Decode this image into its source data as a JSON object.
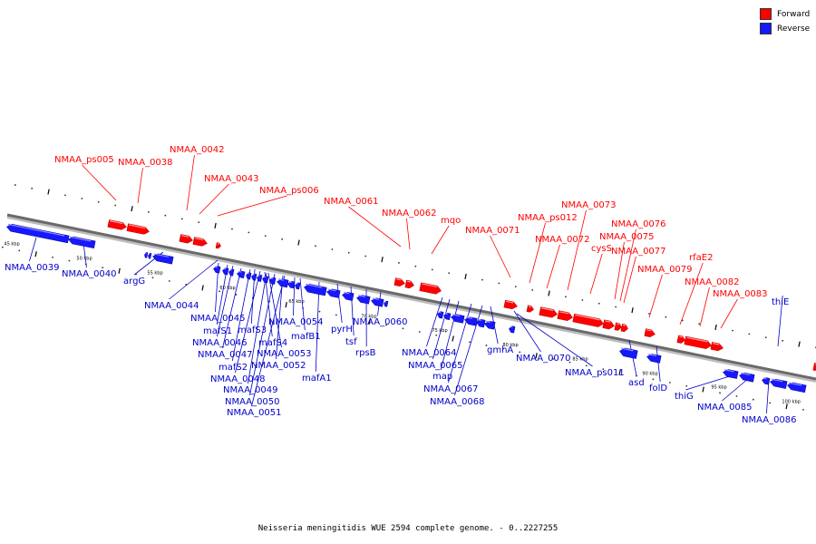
{
  "legend": {
    "forward_label": "Forward",
    "reverse_label": "Reverse",
    "forward_color": "#ff0000",
    "reverse_color": "#1818ff"
  },
  "caption": "Neisseria meningitidis WUE 2594 complete genome. - 0..2227255",
  "scale_labels": [
    "45 kbp",
    "50 kbp",
    "55 kbp",
    "60 kbp",
    "65 kbp",
    "70 kbp",
    "75 kbp",
    "80 kbp",
    "85 kbp",
    "90 kbp",
    "95 kbp",
    "100 kbp"
  ],
  "forward_genes": [
    "NMAA_ps005",
    "NMAA_0038",
    "NMAA_0042",
    "NMAA_0043",
    "NMAA_ps006",
    "NMAA_0061",
    "NMAA_0062",
    "mqo",
    "NMAA_0071",
    "NMAA_ps012",
    "NMAA_0072",
    "NMAA_0073",
    "cysS",
    "NMAA_0075",
    "NMAA_0076",
    "NMAA_0077",
    "NMAA_0079",
    "rfaE2",
    "NMAA_0082",
    "NMAA_0083"
  ],
  "reverse_genes": [
    "NMAA_0039",
    "NMAA_0040",
    "argG",
    "NMAA_0044",
    "NMAA_0045",
    "mafS1",
    "NMAA_0046",
    "NMAA_0047",
    "mafS2",
    "NMAA_0048",
    "NMAA_0049",
    "NMAA_0050",
    "NMAA_0051",
    "mafS3",
    "mafS4",
    "NMAA_0053",
    "NMAA_0052",
    "NMAA_0054",
    "mafB1",
    "mafA1",
    "pyrH",
    "tsf",
    "rpsB",
    "NMAA_0060",
    "NMAA_0064",
    "NMAA_0065",
    "map",
    "NMAA_0067",
    "NMAA_0068",
    "gmhA",
    "NMAA_0070",
    "NMAA_ps011",
    "asd",
    "folD",
    "thiG",
    "NMAA_0085",
    "NMAA_0086",
    "thiE"
  ]
}
